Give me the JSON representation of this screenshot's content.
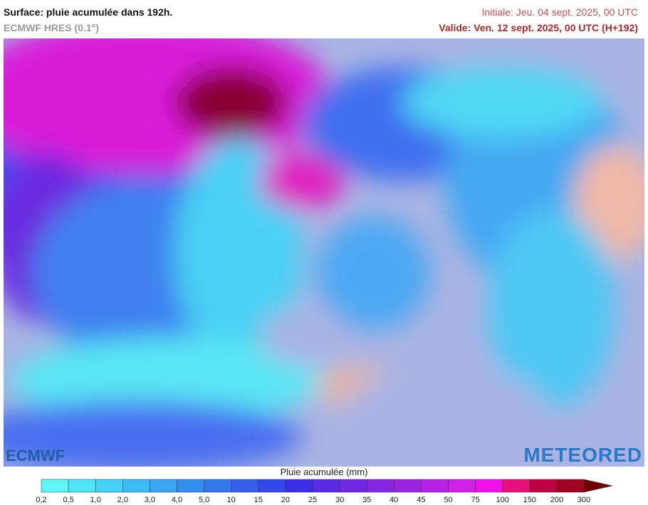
{
  "header": {
    "title": "Surface: pluie acumulée dans 192h.",
    "model": "ECMWF HRES (0.1°)",
    "initial": "Initiale: Jeu. 04 sept. 2025, 00 UTC",
    "valid": "Valide: Ven. 12 sept. 2025, 00 UTC (H+192)"
  },
  "logos": {
    "left": "ECMWF",
    "right": "METEORED"
  },
  "legend": {
    "title": "Pluie acumulée (mm)",
    "labels": [
      "0,2",
      "0,5",
      "1,0",
      "2,0",
      "3,0",
      "4,0",
      "5,0",
      "10",
      "15",
      "20",
      "25",
      "30",
      "35",
      "40",
      "45",
      "50",
      "75",
      "100",
      "150",
      "200",
      "300"
    ],
    "colors": [
      "#5ef6f6",
      "#4ee6f6",
      "#44d2f6",
      "#3cbcf4",
      "#38a6f2",
      "#348ef0",
      "#3478ee",
      "#3460ec",
      "#3248ea",
      "#3a2ee8",
      "#5a2ae6",
      "#7028e4",
      "#8626e2",
      "#9c24e0",
      "#b822e4",
      "#d220e8",
      "#f010ec",
      "#e8107a",
      "#c00040",
      "#a00022",
      "#700000"
    ]
  }
}
